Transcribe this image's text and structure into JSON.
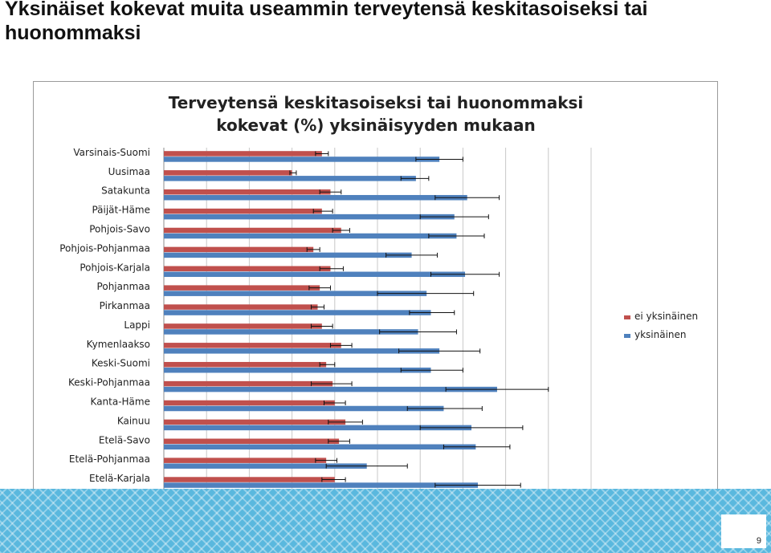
{
  "slide": {
    "title": "Yksinäiset kokevat muita useammin terveytensä keskitasoiseksi tai huonommaksi",
    "page_number": "9"
  },
  "chart_data": {
    "type": "bar",
    "orientation": "horizontal",
    "title_lines": [
      "Terveytensä keskitasoiseksi tai huonommaksi",
      "kokevat (%)  yksinäisyyden mukaan"
    ],
    "categories": [
      "Varsinais-Suomi",
      "Uusimaa",
      "Satakunta",
      "Päijät-Häme",
      "Pohjois-Savo",
      "Pohjois-Pohjanmaa",
      "Pohjois-Karjala",
      "Pohjanmaa",
      "Pirkanmaa",
      "Lappi",
      "Kymenlaakso",
      "Keski-Suomi",
      "Keski-Pohjanmaa",
      "Kanta-Häme",
      "Kainuu",
      "Etelä-Savo",
      "Etelä-Pohjanmaa",
      "Etelä-Karjala"
    ],
    "series": [
      {
        "name": "ei yksinäinen",
        "color": "#c0504d",
        "values": [
          37,
          30,
          39,
          37,
          41.5,
          35,
          39,
          36.5,
          36,
          37,
          41.5,
          38,
          39.5,
          40,
          42.5,
          41,
          38,
          40
        ],
        "err_low": [
          35.5,
          29.5,
          36.5,
          35,
          39.5,
          33.5,
          36.5,
          34,
          34.5,
          34.5,
          39,
          36.5,
          34.5,
          37.5,
          38.5,
          38.5,
          35.5,
          37
        ],
        "err_high": [
          38.5,
          31,
          41.5,
          39.5,
          43.5,
          36.5,
          42,
          39,
          37.5,
          39.5,
          44,
          40,
          44,
          42.5,
          46.5,
          43.5,
          40.5,
          42.5
        ]
      },
      {
        "name": "yksinäinen",
        "color": "#4f81bd",
        "values": [
          64.5,
          59,
          71,
          68,
          68.5,
          58,
          70.5,
          61.5,
          62.5,
          59.5,
          64.5,
          62.5,
          78,
          65.5,
          72,
          73,
          47.5,
          73.5
        ],
        "err_low": [
          59,
          55.5,
          63.5,
          60,
          62,
          52,
          62.5,
          50,
          57.5,
          50.5,
          55,
          55.5,
          66,
          57,
          60,
          65.5,
          38,
          63.5
        ],
        "err_high": [
          70,
          62,
          78.5,
          76,
          75,
          64,
          78.5,
          72.5,
          68,
          68.5,
          74,
          70,
          90,
          74.5,
          84,
          81,
          57,
          83.5
        ]
      }
    ],
    "xlim": [
      0,
      100
    ],
    "xticks": [
      0,
      10,
      20,
      30,
      40,
      50,
      60,
      70,
      80,
      90,
      100
    ],
    "grid": "vertical",
    "legend": "right"
  }
}
